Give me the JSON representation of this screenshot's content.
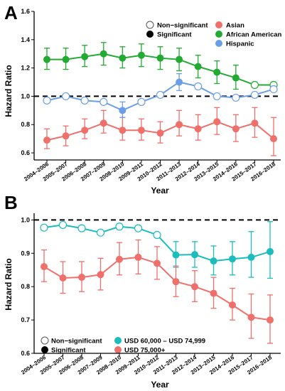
{
  "chart_data": [
    {
      "panel_label": "A",
      "type": "line",
      "xlabel": "Year",
      "ylabel": "Hazard Ratio",
      "ylim": [
        0.55,
        1.6
      ],
      "yticks": [
        0.6,
        0.8,
        1.0,
        1.2,
        1.4,
        1.6
      ],
      "reference_line": 1.0,
      "categories": [
        "2004–2006",
        "2005–2007",
        "2006–2008",
        "2007–2009",
        "2008–2010",
        "2009–2011",
        "2010–2012",
        "2011–2013",
        "2012–2014",
        "2013–2015",
        "2014–2016",
        "2015–2017",
        "2016–2018"
      ],
      "legend_position": "top-right",
      "significance_legend": [
        "Non−significant",
        "Significant"
      ],
      "series": [
        {
          "name": "Asian",
          "color": "#ef6f6a",
          "values": [
            0.69,
            0.72,
            0.76,
            0.81,
            0.76,
            0.76,
            0.74,
            0.8,
            0.77,
            0.82,
            0.77,
            0.81,
            0.7
          ],
          "lower": [
            0.63,
            0.65,
            0.7,
            0.74,
            0.69,
            0.69,
            0.67,
            0.72,
            0.69,
            0.73,
            0.68,
            0.71,
            0.58
          ],
          "upper": [
            0.77,
            0.79,
            0.84,
            0.9,
            0.85,
            0.84,
            0.82,
            0.9,
            0.87,
            0.92,
            0.87,
            0.92,
            0.85
          ],
          "significant": [
            true,
            true,
            true,
            true,
            true,
            true,
            true,
            true,
            true,
            true,
            true,
            true,
            true
          ]
        },
        {
          "name": "African American",
          "color": "#22aa33",
          "values": [
            1.26,
            1.26,
            1.28,
            1.3,
            1.27,
            1.29,
            1.27,
            1.26,
            1.21,
            1.17,
            1.13,
            1.08,
            1.08
          ],
          "lower": [
            1.19,
            1.19,
            1.21,
            1.22,
            1.2,
            1.21,
            1.19,
            1.18,
            1.13,
            1.09,
            1.05,
            null,
            null
          ],
          "upper": [
            1.34,
            1.34,
            1.36,
            1.38,
            1.35,
            1.37,
            1.35,
            1.34,
            1.29,
            1.25,
            1.22,
            null,
            null
          ],
          "significant": [
            true,
            true,
            true,
            true,
            true,
            true,
            true,
            true,
            true,
            true,
            true,
            false,
            false
          ]
        },
        {
          "name": "Hispanic",
          "color": "#6b9ee8",
          "values": [
            0.97,
            1.0,
            0.97,
            0.96,
            0.9,
            0.96,
            1.01,
            1.1,
            1.07,
            1.0,
            0.99,
            1.01,
            1.05
          ],
          "lower": [
            null,
            null,
            null,
            null,
            0.85,
            null,
            null,
            1.04,
            null,
            null,
            null,
            null,
            null
          ],
          "upper": [
            null,
            null,
            null,
            null,
            0.96,
            null,
            null,
            1.16,
            null,
            null,
            null,
            null,
            null
          ],
          "significant": [
            false,
            false,
            false,
            false,
            true,
            false,
            false,
            true,
            false,
            false,
            false,
            false,
            false
          ]
        }
      ]
    },
    {
      "panel_label": "B",
      "type": "line",
      "xlabel": "Year",
      "ylabel": "Hazard Ratio",
      "ylim": [
        0.6,
        1.02
      ],
      "yticks": [
        0.6,
        0.7,
        0.8,
        0.9,
        1.0
      ],
      "reference_line": 1.0,
      "categories": [
        "2004–2006",
        "2005–2007",
        "2006–2008",
        "2007–2009",
        "2008–2010",
        "2009–2011",
        "2010–2012",
        "2011–2013",
        "2012–2014",
        "2013–2015",
        "2014–2016",
        "2015–2017",
        "2016–2018"
      ],
      "legend_position": "bottom-left",
      "significance_legend": [
        "Non−significant",
        "Significant"
      ],
      "series": [
        {
          "name": "USD 60,000 – USD 74,999",
          "color": "#1bbcbc",
          "values": [
            0.977,
            0.985,
            0.975,
            0.962,
            0.98,
            0.975,
            0.955,
            0.895,
            0.896,
            0.877,
            0.883,
            0.888,
            0.905
          ],
          "lower": [
            null,
            null,
            null,
            null,
            null,
            null,
            null,
            0.858,
            0.858,
            0.835,
            0.835,
            0.828,
            0.825
          ],
          "upper": [
            null,
            null,
            null,
            null,
            null,
            null,
            null,
            0.935,
            0.935,
            0.922,
            0.935,
            0.965,
            0.995
          ],
          "significant": [
            false,
            false,
            false,
            false,
            false,
            false,
            false,
            true,
            true,
            true,
            true,
            true,
            true
          ]
        },
        {
          "name": "USD 75,000+",
          "color": "#ef6f6a",
          "values": [
            0.86,
            0.826,
            0.828,
            0.836,
            0.882,
            0.888,
            0.87,
            0.815,
            0.8,
            0.78,
            0.745,
            0.708,
            0.7
          ],
          "lower": [
            0.815,
            0.78,
            0.785,
            0.79,
            0.835,
            0.838,
            0.822,
            0.77,
            0.755,
            0.735,
            0.7,
            0.645,
            0.63
          ],
          "upper": [
            0.91,
            0.875,
            0.875,
            0.885,
            0.932,
            0.94,
            0.92,
            0.862,
            0.848,
            0.828,
            0.795,
            0.778,
            0.775
          ],
          "significant": [
            true,
            true,
            true,
            true,
            true,
            true,
            true,
            true,
            true,
            true,
            true,
            true,
            true
          ]
        }
      ]
    }
  ]
}
